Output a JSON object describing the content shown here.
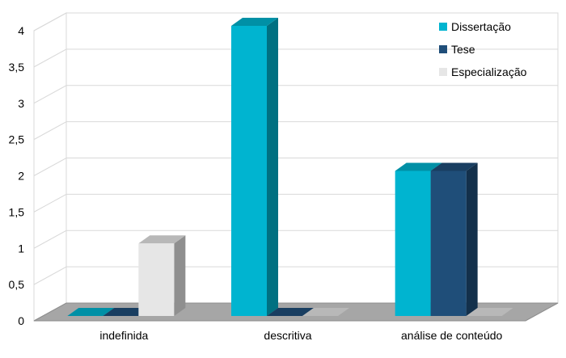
{
  "chart_data": {
    "type": "bar",
    "title": "",
    "xlabel": "",
    "ylabel": "",
    "categories": [
      "indefinida",
      "descritiva",
      "análise de conteúdo"
    ],
    "series": [
      {
        "name": "Dissertação",
        "values": [
          0,
          4,
          2
        ],
        "color": "#00b4d0"
      },
      {
        "name": "Tese",
        "values": [
          0,
          0,
          2
        ],
        "color": "#1f4e79"
      },
      {
        "name": "Especialização",
        "values": [
          1,
          0,
          0
        ],
        "color": "#e6e6e6"
      }
    ],
    "y_ticks": [
      "0",
      "0,5",
      "1",
      "1,5",
      "2",
      "2,5",
      "3",
      "3,5",
      "4"
    ],
    "ylim": [
      0,
      4
    ],
    "grid": true,
    "legend_position": "top-right",
    "style": "3d-clustered-column"
  }
}
